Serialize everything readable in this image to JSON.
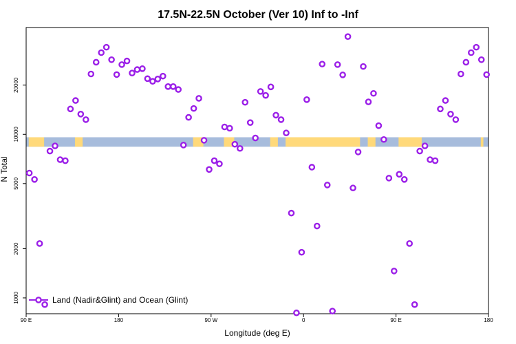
{
  "chart_data": {
    "type": "scatter",
    "title": "17.5N-22.5N October (Ver 10)   Inf to -Inf",
    "xlabel": "Longitude (deg E)",
    "ylabel": "N Total",
    "xlim": [
      90,
      450
    ],
    "ylim": [
      800,
      45000
    ],
    "yscale": "log",
    "x_ticks": [
      {
        "value": 90,
        "label": "90 E"
      },
      {
        "value": 162,
        "label": "180"
      },
      {
        "value": 234,
        "label": "90 W"
      },
      {
        "value": 306,
        "label": "0"
      },
      {
        "value": 378,
        "label": "90 E"
      },
      {
        "value": 450,
        "label": "180"
      }
    ],
    "y_ticks": [
      {
        "value": 1000,
        "label": "1000"
      },
      {
        "value": 2000,
        "label": "2000"
      },
      {
        "value": 5000,
        "label": "5000"
      },
      {
        "value": 10000,
        "label": "10000"
      },
      {
        "value": 20000,
        "label": "20000"
      }
    ],
    "grid": false,
    "legend_position": "bottom-left",
    "series": [
      {
        "name": "Land (Nadir&Glint) and Ocean (Glint)",
        "color": "#9b1fe8",
        "marker": "open-circle",
        "points": [
          [
            92.5,
            5800
          ],
          [
            96.5,
            5300
          ],
          [
            100.5,
            2150
          ],
          [
            104.5,
            910
          ],
          [
            108.5,
            7900
          ],
          [
            112.5,
            8500
          ],
          [
            116.5,
            7000
          ],
          [
            120.5,
            6900
          ],
          [
            124.5,
            14300
          ],
          [
            128.5,
            16100
          ],
          [
            132.5,
            13300
          ],
          [
            136.5,
            12300
          ],
          [
            140.5,
            23400
          ],
          [
            144.5,
            27600
          ],
          [
            148.5,
            31600
          ],
          [
            152.5,
            34100
          ],
          [
            156.5,
            28600
          ],
          [
            160.5,
            23200
          ],
          [
            164.5,
            26700
          ],
          [
            168.5,
            28100
          ],
          [
            172.5,
            23700
          ],
          [
            176.5,
            24900
          ],
          [
            180.5,
            25200
          ],
          [
            184.5,
            21900
          ],
          [
            188.5,
            21100
          ],
          [
            192.5,
            21800
          ],
          [
            196.5,
            22700
          ],
          [
            200.5,
            19600
          ],
          [
            204.5,
            19600
          ],
          [
            208.5,
            18800
          ],
          [
            212.5,
            8600
          ],
          [
            216.5,
            12700
          ],
          [
            220.5,
            14400
          ],
          [
            224.5,
            16600
          ],
          [
            228.5,
            9200
          ],
          [
            232.5,
            6100
          ],
          [
            236.5,
            6900
          ],
          [
            240.5,
            6600
          ],
          [
            244.5,
            11100
          ],
          [
            248.5,
            10900
          ],
          [
            252.5,
            8700
          ],
          [
            256.5,
            8200
          ],
          [
            260.5,
            15700
          ],
          [
            264.5,
            11800
          ],
          [
            268.5,
            9500
          ],
          [
            272.5,
            18300
          ],
          [
            276.5,
            17300
          ],
          [
            280.5,
            19500
          ],
          [
            284.5,
            13100
          ],
          [
            288.5,
            12300
          ],
          [
            292.5,
            10200
          ],
          [
            296.5,
            3300
          ],
          [
            300.5,
            810
          ],
          [
            304.5,
            1900
          ],
          [
            308.5,
            16300
          ],
          [
            312.5,
            6300
          ],
          [
            316.5,
            2750
          ],
          [
            320.5,
            26900
          ],
          [
            324.5,
            4900
          ],
          [
            328.5,
            830
          ],
          [
            332.5,
            26700
          ],
          [
            336.5,
            23100
          ],
          [
            340.5,
            39600
          ],
          [
            344.5,
            4700
          ],
          [
            348.5,
            7800
          ],
          [
            352.5,
            26000
          ],
          [
            356.5,
            15800
          ],
          [
            360.5,
            17800
          ],
          [
            364.5,
            11300
          ],
          [
            368.5,
            9300
          ],
          [
            372.5,
            5400
          ],
          [
            376.5,
            1460
          ],
          [
            380.5,
            5700
          ],
          [
            384.5,
            5300
          ],
          [
            388.5,
            2150
          ],
          [
            392.5,
            910
          ],
          [
            396.5,
            7900
          ],
          [
            400.5,
            8500
          ],
          [
            404.5,
            7000
          ],
          [
            408.5,
            6900
          ],
          [
            412.5,
            14300
          ],
          [
            416.5,
            16100
          ],
          [
            420.5,
            13300
          ],
          [
            424.5,
            12300
          ],
          [
            428.5,
            23400
          ],
          [
            432.5,
            27600
          ],
          [
            436.5,
            31600
          ],
          [
            440.5,
            34100
          ],
          [
            444.5,
            28600
          ],
          [
            448.5,
            23200
          ]
        ]
      }
    ],
    "surface_strip": {
      "y_range": [
        8400,
        9600
      ],
      "ocean_color": "#a7bcdc",
      "land_color": "#ffd97a",
      "land_segments": [
        [
          92,
          104
        ],
        [
          128,
          134
        ],
        [
          220,
          228
        ],
        [
          244,
          252
        ],
        [
          280,
          286
        ],
        [
          292,
          350
        ],
        [
          356,
          362
        ],
        [
          380,
          398
        ],
        [
          444,
          446
        ]
      ]
    }
  }
}
